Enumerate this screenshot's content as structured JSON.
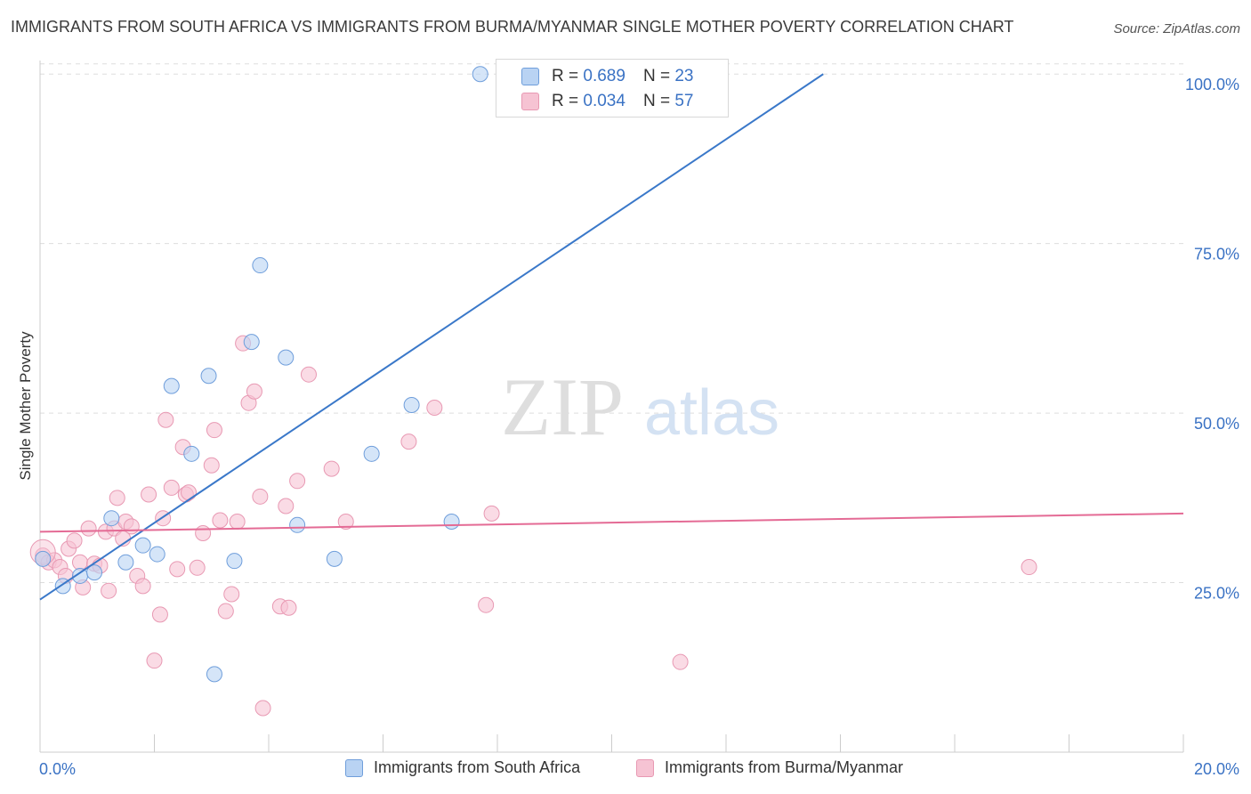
{
  "title": "IMMIGRANTS FROM SOUTH AFRICA VS IMMIGRANTS FROM BURMA/MYANMAR SINGLE MOTHER POVERTY CORRELATION CHART",
  "source": "Source: ZipAtlas.com",
  "watermark": {
    "zip": "ZIP",
    "atlas": "atlas"
  },
  "stats": {
    "r_label": "R =",
    "n_label": "N =",
    "rows": [
      {
        "r": "0.689",
        "n": "23"
      },
      {
        "r": "0.034",
        "n": "57"
      }
    ]
  },
  "colors": {
    "blue_fill": "#b9d3f3",
    "blue_stroke": "#6f9edb",
    "blue_line": "#3a78c9",
    "pink_fill": "#f6c3d3",
    "pink_stroke": "#e899b3",
    "pink_line": "#e46b95",
    "tick_text": "#3a72c4",
    "grid": "#dddddd"
  },
  "chart_data": {
    "type": "scatter",
    "title": "IMMIGRANTS FROM SOUTH AFRICA VS IMMIGRANTS FROM BURMA/MYANMAR SINGLE MOTHER POVERTY CORRELATION CHART",
    "xlabel": "",
    "ylabel": "Single Mother Poverty",
    "xlim": [
      0,
      20
    ],
    "ylim": [
      0,
      102
    ],
    "x_tick_labels": [
      "0.0%",
      "20.0%"
    ],
    "y_ticks": [
      25,
      50,
      75,
      100
    ],
    "y_tick_labels": [
      "25.0%",
      "50.0%",
      "75.0%",
      "100.0%"
    ],
    "grid": true,
    "legend_position": "bottom",
    "series": [
      {
        "name": "Immigrants from South Africa",
        "color": "#6f9edb",
        "points": [
          [
            0.05,
            28.5
          ],
          [
            0.4,
            24.5
          ],
          [
            0.7,
            26.0
          ],
          [
            0.95,
            26.5
          ],
          [
            1.25,
            34.5
          ],
          [
            1.5,
            28.0
          ],
          [
            1.8,
            30.5
          ],
          [
            2.05,
            29.2
          ],
          [
            2.3,
            54.0
          ],
          [
            2.65,
            44.0
          ],
          [
            2.95,
            55.5
          ],
          [
            3.05,
            11.5
          ],
          [
            3.4,
            28.2
          ],
          [
            3.7,
            60.5
          ],
          [
            3.85,
            71.8
          ],
          [
            4.3,
            58.2
          ],
          [
            4.5,
            33.5
          ],
          [
            5.15,
            28.5
          ],
          [
            5.8,
            44.0
          ],
          [
            6.5,
            51.2
          ],
          [
            7.2,
            34.0
          ],
          [
            7.7,
            100.0
          ],
          [
            11.2,
            100.0
          ]
        ],
        "trend": [
          [
            0,
            22.5
          ],
          [
            13.7,
            100.0
          ]
        ]
      },
      {
        "name": "Immigrants from Burma/Myanmar",
        "color": "#e899b3",
        "points": [
          [
            0.05,
            29.0
          ],
          [
            0.15,
            28.0
          ],
          [
            0.25,
            28.3
          ],
          [
            0.35,
            27.3
          ],
          [
            0.45,
            26.0
          ],
          [
            0.5,
            30.0
          ],
          [
            0.6,
            31.2
          ],
          [
            0.7,
            28.0
          ],
          [
            0.75,
            24.3
          ],
          [
            0.85,
            33.0
          ],
          [
            0.95,
            27.8
          ],
          [
            1.05,
            27.5
          ],
          [
            1.15,
            32.5
          ],
          [
            1.2,
            23.8
          ],
          [
            1.3,
            33.0
          ],
          [
            1.35,
            37.5
          ],
          [
            1.45,
            31.5
          ],
          [
            1.5,
            34.0
          ],
          [
            1.6,
            33.3
          ],
          [
            1.7,
            26.0
          ],
          [
            1.8,
            24.5
          ],
          [
            1.9,
            38.0
          ],
          [
            2.0,
            13.5
          ],
          [
            2.1,
            20.3
          ],
          [
            2.15,
            34.5
          ],
          [
            2.2,
            49.0
          ],
          [
            2.3,
            39.0
          ],
          [
            2.4,
            27.0
          ],
          [
            2.5,
            45.0
          ],
          [
            2.55,
            38.0
          ],
          [
            2.6,
            38.3
          ],
          [
            2.75,
            27.2
          ],
          [
            2.85,
            32.3
          ],
          [
            3.0,
            42.3
          ],
          [
            3.05,
            47.5
          ],
          [
            3.15,
            34.2
          ],
          [
            3.25,
            20.8
          ],
          [
            3.35,
            23.3
          ],
          [
            3.45,
            34.0
          ],
          [
            3.55,
            60.3
          ],
          [
            3.65,
            51.5
          ],
          [
            3.75,
            53.2
          ],
          [
            3.85,
            37.7
          ],
          [
            3.9,
            6.5
          ],
          [
            4.2,
            21.5
          ],
          [
            4.3,
            36.3
          ],
          [
            4.35,
            21.3
          ],
          [
            4.5,
            40.0
          ],
          [
            4.7,
            55.7
          ],
          [
            5.1,
            41.8
          ],
          [
            5.35,
            34.0
          ],
          [
            6.45,
            45.8
          ],
          [
            6.9,
            50.8
          ],
          [
            7.8,
            21.7
          ],
          [
            7.9,
            35.2
          ],
          [
            11.2,
            13.3
          ],
          [
            17.3,
            27.3
          ]
        ],
        "trend": [
          [
            0,
            32.5
          ],
          [
            20,
            35.2
          ]
        ]
      }
    ]
  },
  "legend": {
    "items": [
      {
        "label": "Immigrants from South Africa"
      },
      {
        "label": "Immigrants from Burma/Myanmar"
      }
    ]
  }
}
